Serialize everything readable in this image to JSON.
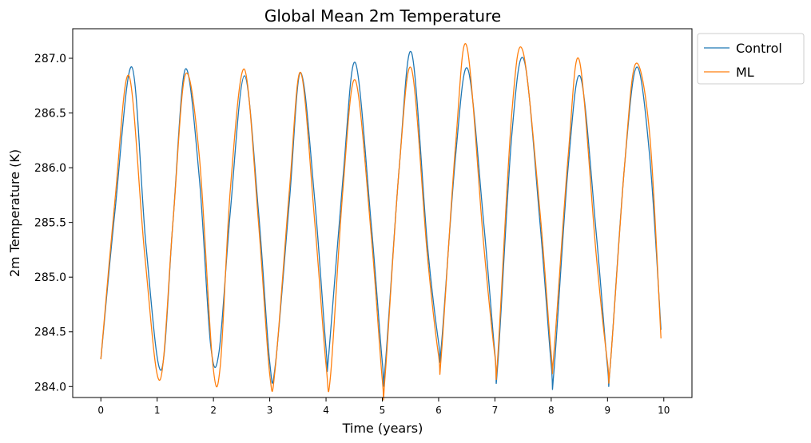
{
  "chart_data": {
    "type": "line",
    "title": "Global Mean 2m Temperature",
    "xlabel": "Time (years)",
    "ylabel": "2m Temperature (K)",
    "xlim": [
      -0.5,
      10.5
    ],
    "ylim": [
      283.9,
      287.27
    ],
    "xticks": [
      0,
      1,
      2,
      3,
      4,
      5,
      6,
      7,
      8,
      9,
      10
    ],
    "xtick_labels": [
      "0",
      "1",
      "2",
      "3",
      "4",
      "5",
      "6",
      "7",
      "8",
      "9",
      "10"
    ],
    "yticks": [
      284.0,
      284.5,
      285.0,
      285.5,
      286.0,
      286.5,
      287.0
    ],
    "ytick_labels": [
      "284.0",
      "284.5",
      "285.0",
      "285.5",
      "286.0",
      "286.5",
      "287.0"
    ],
    "grid": false,
    "legend": "upper-right-outside",
    "series": [
      {
        "name": "Control",
        "color": "#1f77b4",
        "x": [
          0.0,
          0.25,
          0.55,
          0.8,
          1.07,
          1.28,
          1.5,
          1.75,
          1.95,
          2.1,
          2.3,
          2.55,
          2.8,
          3.0,
          3.1,
          3.35,
          3.55,
          3.8,
          4.0,
          4.05,
          4.3,
          4.52,
          4.8,
          5.0,
          5.05,
          5.3,
          5.52,
          5.8,
          6.0,
          6.05,
          6.3,
          6.52,
          6.8,
          7.0,
          7.05,
          7.3,
          7.52,
          7.8,
          8.0,
          8.05,
          8.3,
          8.52,
          8.8,
          9.0,
          9.05,
          9.3,
          9.52,
          9.75,
          9.95
        ],
        "y": [
          284.25,
          285.6,
          286.92,
          285.3,
          284.15,
          285.5,
          286.9,
          285.9,
          284.38,
          284.32,
          285.6,
          286.84,
          285.6,
          284.22,
          284.2,
          285.7,
          286.87,
          285.7,
          284.35,
          284.3,
          285.9,
          286.96,
          285.5,
          284.22,
          284.18,
          286.0,
          287.05,
          285.3,
          284.4,
          284.38,
          286.1,
          286.9,
          285.5,
          284.3,
          284.2,
          286.3,
          286.98,
          285.5,
          284.2,
          284.15,
          286.0,
          286.83,
          285.4,
          284.18,
          284.2,
          286.0,
          286.92,
          286.1,
          284.52
        ]
      },
      {
        "name": "ML",
        "color": "#ff7f0e",
        "x": [
          0.0,
          0.25,
          0.5,
          0.78,
          1.05,
          1.28,
          1.5,
          1.75,
          1.98,
          2.12,
          2.3,
          2.55,
          2.8,
          3.0,
          3.1,
          3.35,
          3.55,
          3.8,
          4.0,
          4.08,
          4.3,
          4.52,
          4.8,
          5.0,
          5.05,
          5.3,
          5.52,
          5.8,
          6.0,
          6.05,
          6.3,
          6.5,
          6.8,
          7.0,
          7.05,
          7.3,
          7.5,
          7.8,
          8.0,
          8.05,
          8.3,
          8.5,
          8.8,
          9.0,
          9.05,
          9.3,
          9.5,
          9.75,
          9.95
        ],
        "y": [
          284.25,
          285.7,
          286.84,
          285.2,
          284.06,
          285.5,
          286.85,
          286.1,
          284.25,
          284.18,
          285.8,
          286.9,
          285.5,
          284.11,
          284.18,
          285.8,
          286.87,
          285.5,
          284.2,
          284.1,
          285.8,
          286.8,
          285.4,
          284.06,
          284.1,
          286.0,
          286.9,
          285.2,
          284.28,
          284.3,
          286.2,
          287.11,
          285.3,
          284.28,
          284.27,
          286.5,
          287.06,
          285.6,
          284.3,
          284.32,
          286.1,
          286.98,
          285.2,
          284.22,
          284.2,
          286.0,
          286.95,
          286.3,
          284.44
        ]
      }
    ]
  }
}
